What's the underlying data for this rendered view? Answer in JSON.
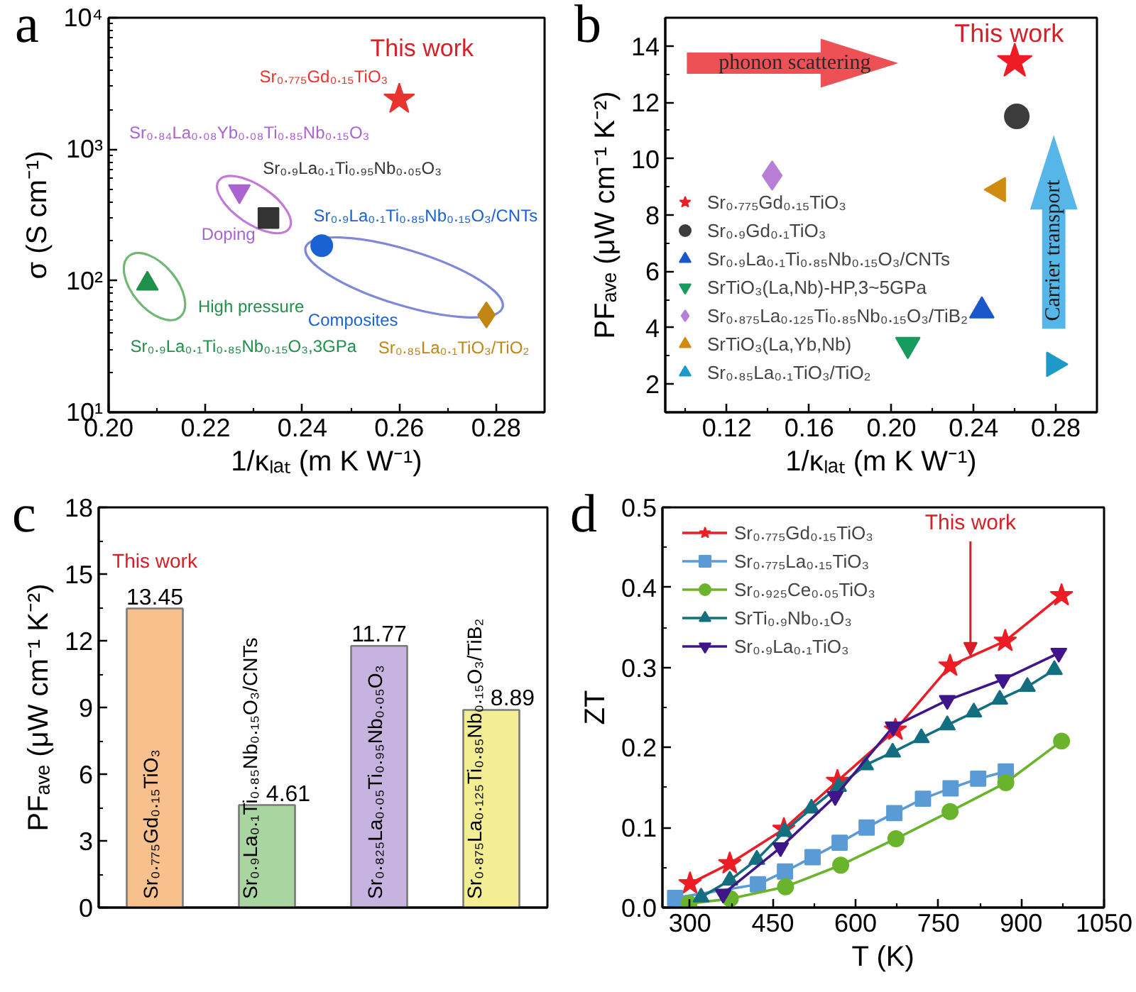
{
  "chart_data": [
    {
      "type": "scatter",
      "title": "a",
      "xlabel": "1/κₗₐₜ (m K W⁻¹)",
      "ylabel": "σ (S cm⁻¹)",
      "log": "y",
      "xlim": [
        0.2,
        0.29
      ],
      "xticks": [
        {
          "value": 0.2,
          "label": "0.20"
        },
        {
          "value": 0.21,
          "label": null
        },
        0.22,
        {
          "value": 0.23,
          "label": null
        },
        0.24,
        {
          "value": 0.25,
          "label": null
        },
        0.26,
        {
          "value": 0.27,
          "label": null
        },
        0.28
      ],
      "ylim": [
        10,
        10000
      ],
      "yticks": [
        {
          "value": 10,
          "label": "10¹"
        },
        {
          "value": 20,
          "label": null
        },
        {
          "value": 30,
          "label": null
        },
        {
          "value": 40,
          "label": null
        },
        {
          "value": 50,
          "label": null
        },
        {
          "value": 60,
          "label": null
        },
        {
          "value": 70,
          "label": null
        },
        {
          "value": 80,
          "label": null
        },
        {
          "value": 90,
          "label": null
        },
        {
          "value": 100,
          "label": "10²"
        },
        {
          "value": 200,
          "label": null
        },
        {
          "value": 300,
          "label": null
        },
        {
          "value": 400,
          "label": null
        },
        {
          "value": 500,
          "label": null
        },
        {
          "value": 600,
          "label": null
        },
        {
          "value": 700,
          "label": null
        },
        {
          "value": 800,
          "label": null
        },
        {
          "value": 900,
          "label": null
        },
        {
          "value": 1000,
          "label": "10³"
        },
        {
          "value": 2000,
          "label": null
        },
        {
          "value": 3000,
          "label": null
        },
        {
          "value": 4000,
          "label": null
        },
        {
          "value": 5000,
          "label": null
        },
        {
          "value": 6000,
          "label": null
        },
        {
          "value": 7000,
          "label": null
        },
        {
          "value": 8000,
          "label": null
        },
        {
          "value": 9000,
          "label": null
        },
        {
          "value": 10000,
          "label": "10⁴"
        }
      ],
      "series": [
        {
          "name": "Sr₀.₇₇₅Gd₀.₁₅TiO₃",
          "color": "#e8342f",
          "marker": "star",
          "x": [
            0.26
          ],
          "values": [
            2400
          ]
        },
        {
          "name": "Sr₀.₈₄La₀.₀₈Yb₀.₀₈Ti₀.₈₅Nb₀.₁₅O₃",
          "color": "#a964d2",
          "marker": "triangle",
          "x": [
            0.227
          ],
          "values": [
            480
          ]
        },
        {
          "name": "Sr₀.₉La₀.₁Ti₀.₉₅Nb₀.₀₅O₃",
          "color": "#333333",
          "marker": "square",
          "x": [
            0.233
          ],
          "values": [
            300
          ]
        },
        {
          "name": "Sr₀.₉La₀.₁Ti₀.₈₅Nb₀.₁₅O₃/CNTs",
          "color": "#1a62d4",
          "marker": "circle",
          "x": [
            0.244
          ],
          "values": [
            185
          ]
        },
        {
          "name": "Sr₀.₉La₀.₁Ti₀.₈₅Nb₀.₁₅O₃,3GPa",
          "color": "#1f8f4a",
          "marker": "triangle",
          "x": [
            0.208
          ],
          "values": [
            95
          ]
        },
        {
          "name": "Sr₀.₈₅La₀.₁TiO₃/TiO₂",
          "color": "#c08512",
          "marker": "diamond",
          "x": [
            0.278
          ],
          "values": [
            55
          ]
        }
      ],
      "annotations": [
        {
          "text": "This work",
          "x": 0.26,
          "y": 2400
        },
        "Doping",
        "High pressure",
        "Composites"
      ]
    },
    {
      "type": "scatter",
      "title": "b",
      "xlabel": "1/κₗₐₜ (m K W⁻¹)",
      "ylabel": "PFₐᵥₑ (μW cm⁻¹ K⁻²)",
      "xlim": [
        0.09,
        0.3
      ],
      "xticks": [
        {
          "value": 0.1,
          "label": null
        },
        0.12,
        {
          "value": 0.14,
          "label": null
        },
        0.16,
        {
          "value": 0.18,
          "label": null
        },
        {
          "value": 0.2,
          "label": "0.20"
        },
        {
          "value": 0.22,
          "label": null
        },
        0.24,
        {
          "value": 0.26,
          "label": null
        },
        0.28
      ],
      "ylim": [
        1,
        15
      ],
      "yticks": [
        2,
        {
          "value": 3,
          "label": null
        },
        4,
        {
          "value": 5,
          "label": null
        },
        6,
        {
          "value": 7,
          "label": null
        },
        8,
        {
          "value": 9,
          "label": null
        },
        10,
        {
          "value": 11,
          "label": null
        },
        12,
        {
          "value": 13,
          "label": null
        },
        14
      ],
      "legend": "bottom left",
      "series": [
        {
          "name": "Sr₀.₇₇₅Gd₀.₁₅TiO₃",
          "color": "#ee1c25",
          "marker": "star",
          "x": [
            0.26
          ],
          "values": [
            13.45
          ]
        },
        {
          "name": "Sr₀.₉Gd₀.₁TiO₃",
          "color": "#3c3c3c",
          "marker": "circle",
          "x": [
            0.261
          ],
          "values": [
            11.5
          ]
        },
        {
          "name": "Sr₀.₉La₀.₁Ti₀.₈₅Nb₀.₁₅O₃/CNTs",
          "color": "#1a56cc",
          "marker": "triangle",
          "x": [
            0.244
          ],
          "values": [
            4.6
          ]
        },
        {
          "name": "SrTiO₃(La,Nb)-HP,3~5GPa",
          "color": "#179b5e",
          "marker": "triangle",
          "x": [
            0.208
          ],
          "values": [
            3.4
          ]
        },
        {
          "name": "Sr₀.₈₇₅La₀.₁₂₅Ti₀.₈₅Nb₀.₁₅O₃/TiB₂",
          "color": "#b87fd6",
          "marker": "diamond",
          "x": [
            0.142
          ],
          "values": [
            9.4
          ]
        },
        {
          "name": "SrTiO₃(La,Yb,Nb)",
          "color": "#d08c12",
          "marker": "triangle",
          "x": [
            0.252
          ],
          "values": [
            8.9
          ]
        },
        {
          "name": "Sr₀.₈₅La₀.₁TiO₃/TiO₂",
          "color": "#1e9ac8",
          "marker": "triangle",
          "x": [
            0.279
          ],
          "values": [
            2.7
          ]
        }
      ],
      "annotations": [
        {
          "text": "This work",
          "x": 0.26,
          "y": 13.45
        },
        "phonon scattering",
        "Carrier transport"
      ]
    },
    {
      "type": "bar",
      "title": "c",
      "ylabel": "PFₐᵥₑ (μW cm⁻¹ K⁻²)",
      "categories": [
        "Sr₀.₇₇₅Gd₀.₁₅TiO₃",
        "Sr₀.₉La₀.₁Ti₀.₈₅Nb₀.₁₅O₃/CNTs",
        "Sr₀.₈₂₅La₀.₀₅Ti₀.₉₅Nb₀.₀₅O₃",
        "Sr₀.₈₇₅La₀.₁₂₅Ti₀.₈₅Nb₀.₁₅O₃/TiB₂"
      ],
      "values": [
        13.45,
        4.61,
        11.77,
        8.89
      ],
      "colors": [
        "#f7c08c",
        "#a9d5a0",
        "#c7b3df",
        "#f3ee94"
      ],
      "ylim": [
        0,
        18
      ],
      "yticks": [
        0,
        {
          "value": 1.5,
          "label": null
        },
        3,
        {
          "value": 4.5,
          "label": null
        },
        6,
        {
          "value": 7.5,
          "label": null
        },
        9,
        {
          "value": 10.5,
          "label": null
        },
        12,
        {
          "value": 13.5,
          "label": null
        },
        15,
        {
          "value": 16.5,
          "label": null
        },
        18
      ],
      "data_labels": true,
      "annotations": [
        {
          "text": "This work",
          "x": "Sr₀.₇₇₅Gd₀.₁₅TiO₃",
          "y": 13.45
        }
      ]
    },
    {
      "type": "line",
      "title": "d",
      "xlabel": "T (K)",
      "ylabel": "ZT",
      "xlim": [
        250,
        1050
      ],
      "xticks": [
        300,
        {
          "value": 375,
          "label": null
        },
        450,
        {
          "value": 525,
          "label": null
        },
        600,
        {
          "value": 675,
          "label": null
        },
        750,
        {
          "value": 825,
          "label": null
        },
        900,
        {
          "value": 975,
          "label": null
        },
        1050
      ],
      "ylim": [
        0,
        0.5
      ],
      "yticks": [
        {
          "value": 0,
          "label": "0.0"
        },
        {
          "value": 0.05,
          "label": null
        },
        0.1,
        {
          "value": 0.15,
          "label": null
        },
        0.2,
        {
          "value": 0.25,
          "label": null
        },
        0.3,
        {
          "value": 0.35,
          "label": null
        },
        0.4,
        {
          "value": 0.45,
          "label": null
        },
        0.5
      ],
      "legend": "top left",
      "line_style": "solid",
      "series": [
        {
          "name": "Sr₀.₇₇₅Gd₀.₁₅TiO₃",
          "color": "#ee1c25",
          "marker": "star",
          "x": [
            300,
            372,
            470,
            567,
            672,
            771,
            871,
            973
          ],
          "values": [
            0.03,
            0.055,
            0.098,
            0.158,
            0.222,
            0.302,
            0.333,
            0.39
          ]
        },
        {
          "name": "Sr₀.₇₇₅La₀.₁₅TiO₃",
          "color": "#5b9bd5",
          "marker": "square",
          "x": [
            273,
            423,
            472,
            522,
            571,
            620,
            670,
            722,
            772,
            822,
            872
          ],
          "values": [
            0.012,
            0.029,
            0.045,
            0.063,
            0.081,
            0.1,
            0.118,
            0.136,
            0.149,
            0.161,
            0.17
          ]
        },
        {
          "name": "Sr₀.₉₂₅Ce₀.₀₅TiO₃",
          "color": "#6ab42d",
          "marker": "circle",
          "x": [
            298,
            373,
            473,
            573,
            673,
            771,
            872,
            973
          ],
          "values": [
            0.005,
            0.011,
            0.026,
            0.053,
            0.086,
            0.12,
            0.156,
            0.208
          ]
        },
        {
          "name": "SrTi₀.₉Nb₀.₁O₃",
          "color": "#136f80",
          "marker": "triangle",
          "x": [
            320,
            372,
            421,
            471,
            520,
            569,
            618,
            667,
            719,
            766,
            814,
            861,
            911,
            960
          ],
          "values": [
            0.013,
            0.034,
            0.06,
            0.095,
            0.124,
            0.151,
            0.178,
            0.194,
            0.212,
            0.228,
            0.244,
            0.26,
            0.276,
            0.297
          ]
        },
        {
          "name": "Sr₀.₉La₀.₁TiO₃",
          "color": "#3e1689",
          "marker": "triangle",
          "x": [
            360,
            464,
            563,
            668,
            766,
            867,
            968
          ],
          "values": [
            0.017,
            0.075,
            0.139,
            0.226,
            0.259,
            0.285,
            0.318
          ]
        }
      ],
      "annotations": [
        {
          "text": "This work",
          "x": 808,
          "y": 0.315
        }
      ]
    }
  ]
}
